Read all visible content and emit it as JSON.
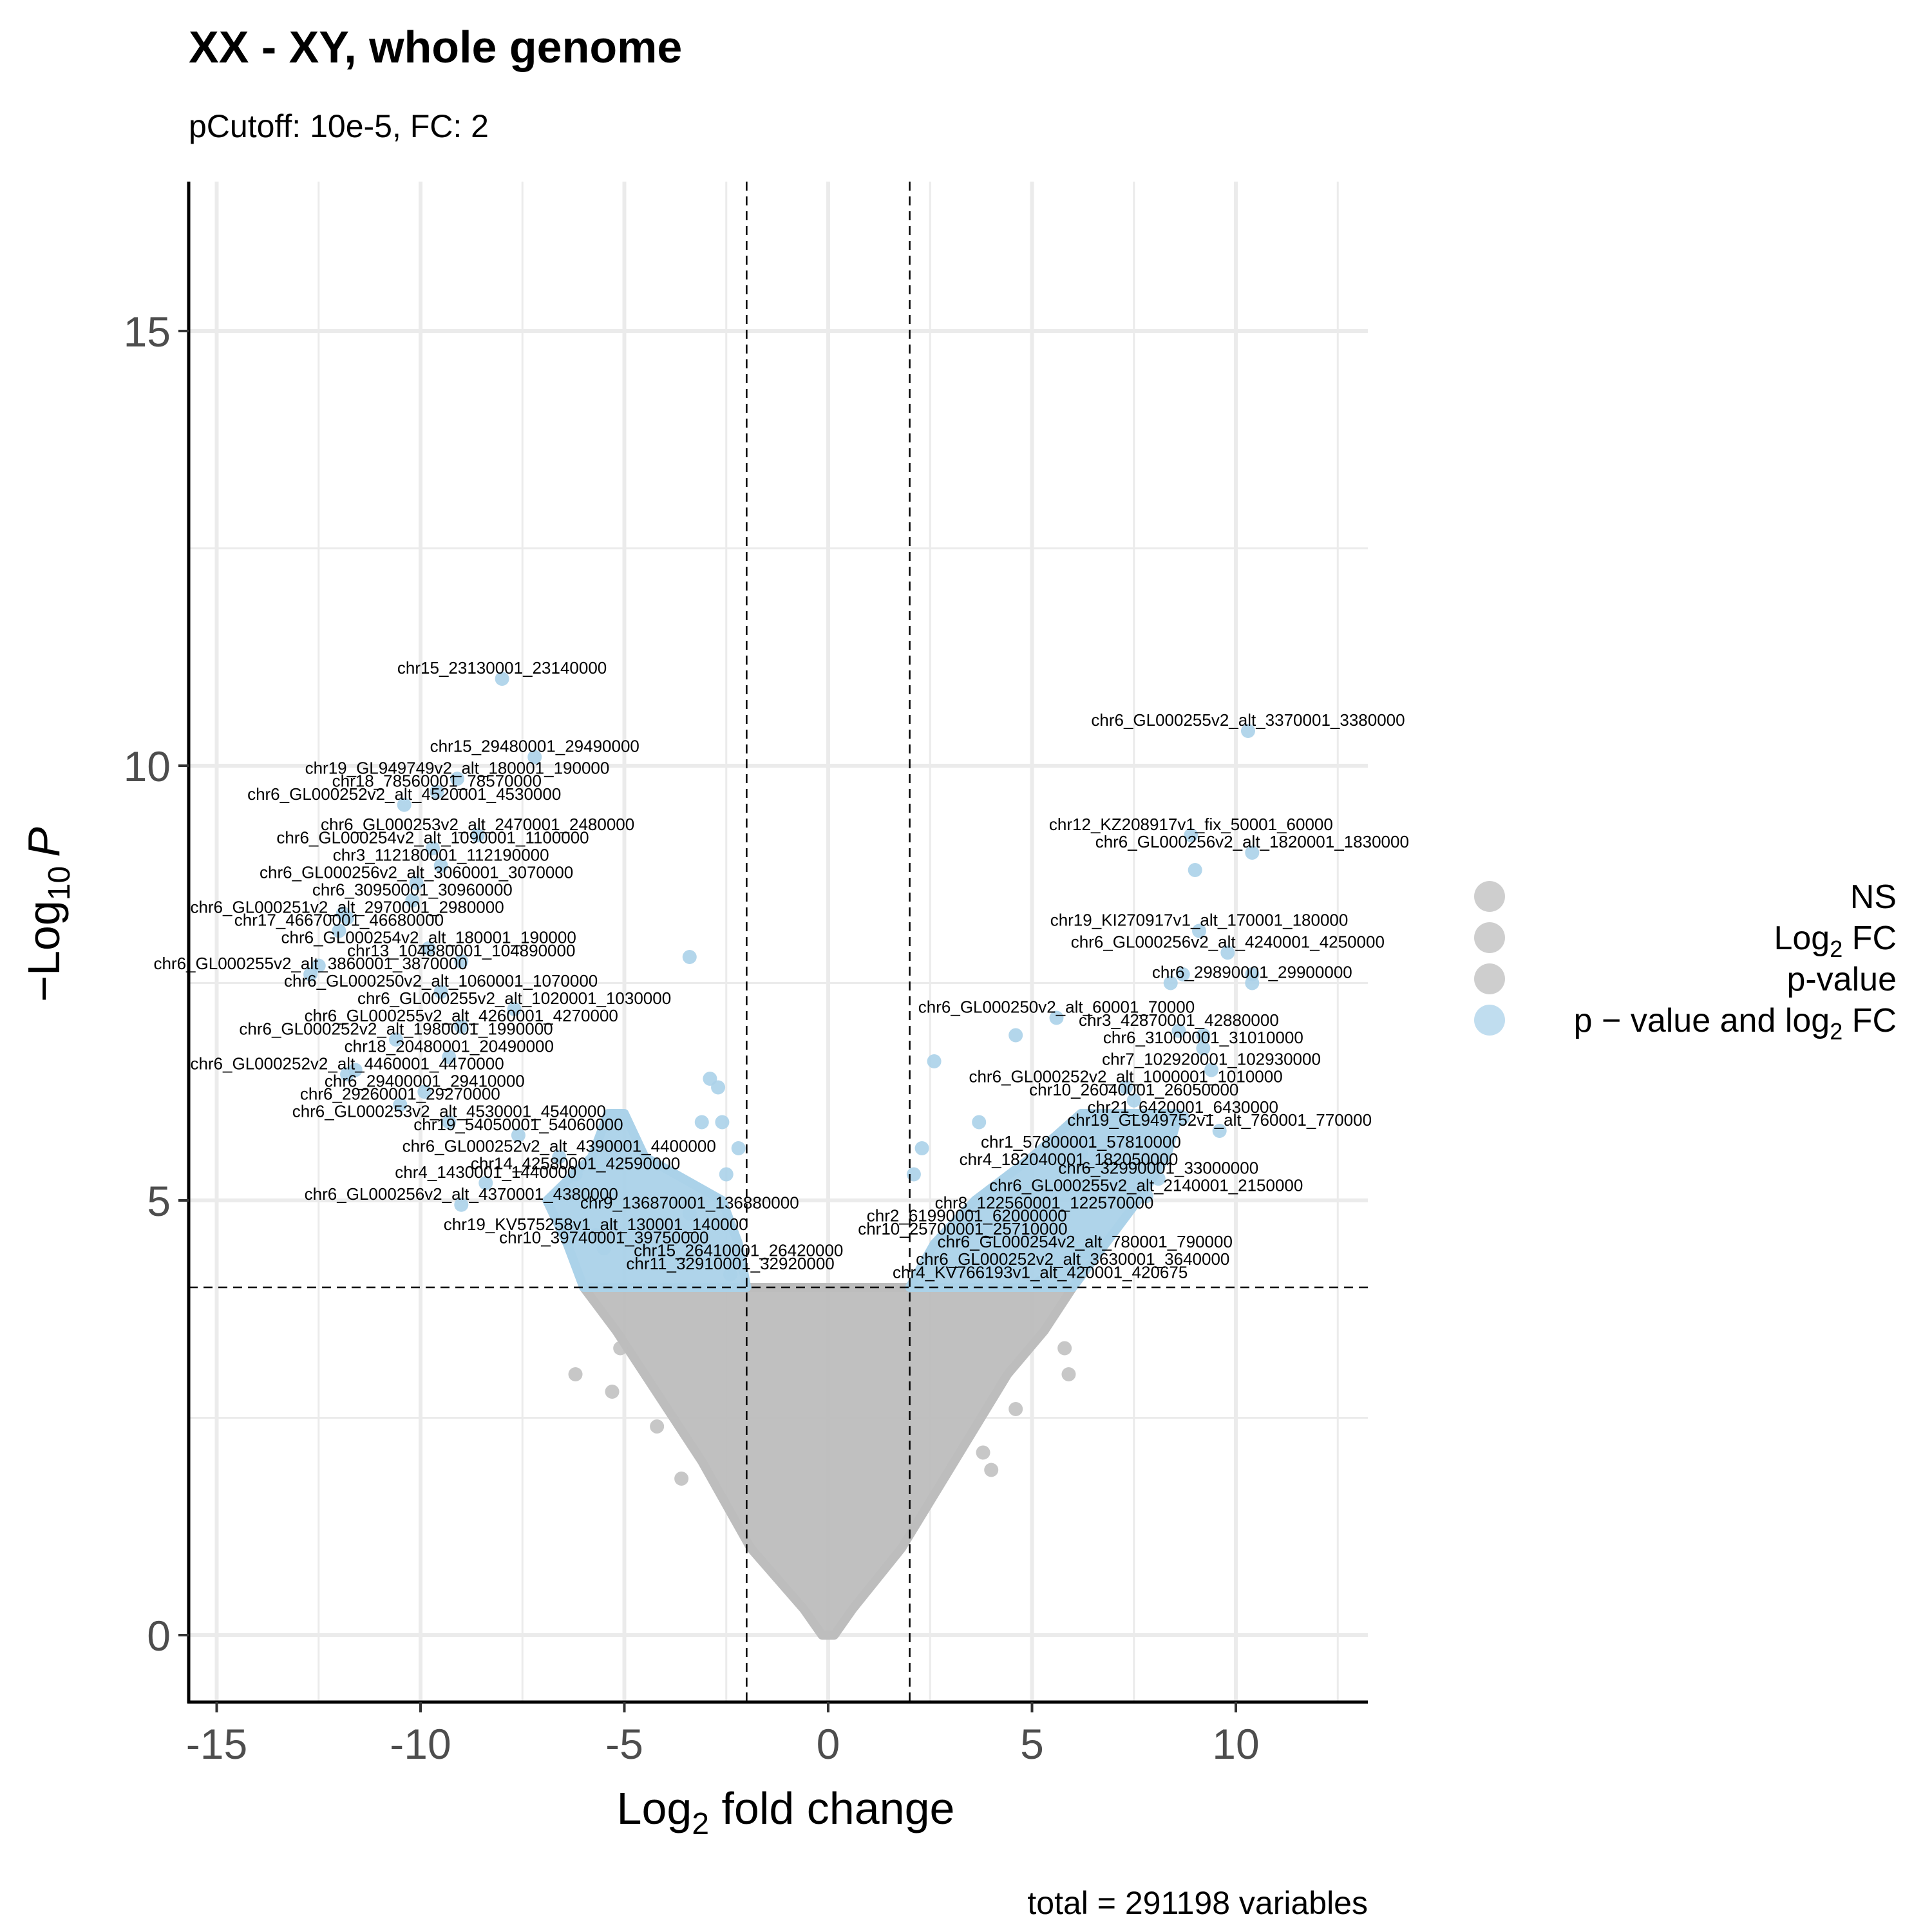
{
  "chart_data": {
    "type": "scatter",
    "title": "XX - XY, whole genome",
    "subtitle": "pCutoff: 10e-5, FC: 2",
    "xlabel_main": "Log",
    "xlabel_sub": "2",
    "xlabel_tail": " fold change",
    "ylabel_prefix": "−Log",
    "ylabel_sub": "10",
    "ylabel_tail": "P",
    "caption": "total = 291198 variables",
    "xlim": [
      -15.6,
      13.2
    ],
    "ylim": [
      -0.8,
      16.8
    ],
    "x_ticks": [
      -15,
      -10,
      -5,
      0,
      5,
      10
    ],
    "x_tick_labels": [
      "-15",
      "-10",
      "-5",
      "0",
      "5",
      "10"
    ],
    "y_ticks": [
      0,
      5,
      10,
      15
    ],
    "y_tick_labels": [
      "0",
      "5",
      "10",
      "15"
    ],
    "grid": true,
    "cutoffs": {
      "log2fc": [
        -2,
        2
      ],
      "neg_log10_p": 4
    },
    "colors": {
      "ns": "#bdbdbd",
      "significant": "#abd2e9"
    },
    "legend": {
      "position": "right",
      "entries": [
        {
          "key": "ns",
          "label": "NS",
          "color": "#bdbdbd"
        },
        {
          "key": "fc",
          "label": "Log",
          "sub": "2",
          "tail": " FC",
          "color": "#bdbdbd"
        },
        {
          "key": "p",
          "label": "p-value",
          "color": "#bdbdbd"
        },
        {
          "key": "both",
          "label": "p − value and log",
          "sub": "2",
          "tail": " FC",
          "color": "#abd2e9"
        }
      ]
    },
    "labeled_points": [
      {
        "label": "chr15_23130001_23140000",
        "x": -8.0,
        "y": 11.0
      },
      {
        "label": "chr15_29480001_29490000",
        "x": -7.2,
        "y": 10.1
      },
      {
        "label": "chr19_GL949749v2_alt_180001_190000",
        "x": -9.1,
        "y": 9.85
      },
      {
        "label": "chr18_78560001_78570000",
        "x": -9.6,
        "y": 9.7
      },
      {
        "label": "chr6_GL000252v2_alt_4520001_4530000",
        "x": -10.4,
        "y": 9.55
      },
      {
        "label": "chr6_GL000253v2_alt_2470001_2480000",
        "x": -8.6,
        "y": 9.2
      },
      {
        "label": "chr6_GL000254v2_alt_1090001_1100000",
        "x": -9.7,
        "y": 9.05
      },
      {
        "label": "chr3_112180001_112190000",
        "x": -9.5,
        "y": 8.85
      },
      {
        "label": "chr6_GL000256v2_alt_3060001_3070000",
        "x": -10.1,
        "y": 8.65
      },
      {
        "label": "chr6_30950001_30960000",
        "x": -10.2,
        "y": 8.45
      },
      {
        "label": "chr6_GL000251v2_alt_2970001_2980000",
        "x": -11.8,
        "y": 8.25
      },
      {
        "label": "chr17_46670001_46680000",
        "x": -12.0,
        "y": 8.1
      },
      {
        "label": "chr6_GL000254v2_alt_180001_190000",
        "x": -9.8,
        "y": 7.9
      },
      {
        "label": "chr13_104880001_104890000",
        "x": -9.0,
        "y": 7.75
      },
      {
        "label": "chr6_GL000255v2_alt_3860001_3870000",
        "x": -12.7,
        "y": 7.6
      },
      {
        "label": "chr6_GL000250v2_alt_1060001_1070000",
        "x": -9.5,
        "y": 7.4
      },
      {
        "label": "chr6_GL000255v2_alt_1020001_1030000",
        "x": -7.7,
        "y": 7.2
      },
      {
        "label": "chr6_GL000255v2_alt_4260001_4270000",
        "x": -9.0,
        "y": 7.0
      },
      {
        "label": "chr6_GL000252v2_alt_1980001_1990000",
        "x": -10.6,
        "y": 6.85
      },
      {
        "label": "chr18_20480001_20490000",
        "x": -9.3,
        "y": 6.65
      },
      {
        "label": "chr6_GL000252v2_alt_4460001_4470000",
        "x": -11.8,
        "y": 6.45
      },
      {
        "label": "chr6_29400001_29410000",
        "x": -9.9,
        "y": 6.25
      },
      {
        "label": "chr6_29260001_29270000",
        "x": -10.5,
        "y": 6.1
      },
      {
        "label": "chr6_GL000253v2_alt_4530001_4540000",
        "x": -9.3,
        "y": 5.9
      },
      {
        "label": "chr19_54050001_54060000",
        "x": -7.6,
        "y": 5.75
      },
      {
        "label": "chr6_GL000252v2_alt_4390001_4400000",
        "x": -6.6,
        "y": 5.5
      },
      {
        "label": "chr14_42580001_42590000",
        "x": -6.2,
        "y": 5.3
      },
      {
        "label": "chr4_1430001_1440000",
        "x": -8.4,
        "y": 5.2
      },
      {
        "label": "chr6_GL000256v2_alt_4370001_4380000",
        "x": -9.0,
        "y": 4.95
      },
      {
        "label": "chr9_136870001_136880000",
        "x": -3.4,
        "y": 4.85
      },
      {
        "label": "chr19_KV575258v1_alt_130001_140000",
        "x": -5.7,
        "y": 4.6
      },
      {
        "label": "chr10_39740001_39750000",
        "x": -5.5,
        "y": 4.45
      },
      {
        "label": "chr15_26410001_26420000",
        "x": -2.2,
        "y": 4.3
      },
      {
        "label": "chr11_32910001_32920000",
        "x": -2.4,
        "y": 4.15
      },
      {
        "label": "chr6_GL000255v2_alt_3370001_3380000",
        "x": 10.3,
        "y": 10.4
      },
      {
        "label": "chr12_KZ208917v1_fix_50001_60000",
        "x": 8.9,
        "y": 9.2
      },
      {
        "label": "chr6_GL000256v2_alt_1820001_1830000",
        "x": 10.4,
        "y": 9.0
      },
      {
        "label": "chr19_KI270917v1_alt_170001_180000",
        "x": 9.1,
        "y": 8.1
      },
      {
        "label": "chr6_GL000256v2_alt_4240001_4250000",
        "x": 9.8,
        "y": 7.85
      },
      {
        "label": "chr6_29890001_29900000",
        "x": 10.4,
        "y": 7.5
      },
      {
        "label": "chr6_GL000250v2_alt_60001_70000",
        "x": 5.6,
        "y": 7.1
      },
      {
        "label": "chr3_42870001_42880000",
        "x": 8.6,
        "y": 6.95
      },
      {
        "label": "chr6_31000001_31010000",
        "x": 9.2,
        "y": 6.75
      },
      {
        "label": "chr7_102920001_102930000",
        "x": 9.4,
        "y": 6.5
      },
      {
        "label": "chr6_GL000252v2_alt_1000001_1010000",
        "x": 7.3,
        "y": 6.3
      },
      {
        "label": "chr10_26040001_26050000",
        "x": 7.5,
        "y": 6.15
      },
      {
        "label": "chr21_6420001_6430000",
        "x": 8.7,
        "y": 5.95
      },
      {
        "label": "chr19_GL949752v1_alt_760001_770000",
        "x": 9.6,
        "y": 5.8
      },
      {
        "label": "chr1_57800001_57810000",
        "x": 6.2,
        "y": 5.55
      },
      {
        "label": "chr4_182040001_182050000",
        "x": 5.9,
        "y": 5.35
      },
      {
        "label": "chr6_32990001_33000000",
        "x": 8.1,
        "y": 5.25
      },
      {
        "label": "chr6_GL000255v2_alt_2140001_2150000",
        "x": 7.8,
        "y": 5.05
      },
      {
        "label": "chr8_122560001_122570000",
        "x": 5.3,
        "y": 4.85
      },
      {
        "label": "chr2_61990001_62000000",
        "x": 3.4,
        "y": 4.7
      },
      {
        "label": "chr10_25700001_25710000",
        "x": 3.3,
        "y": 4.55
      },
      {
        "label": "chr6_GL000254v2_alt_780001_790000",
        "x": 6.3,
        "y": 4.4
      },
      {
        "label": "chr6_GL000252v2_alt_3630001_3640000",
        "x": 6.0,
        "y": 4.2
      },
      {
        "label": "chr4_KV766193v1_alt_420001_420675",
        "x": 5.2,
        "y": 4.05
      }
    ],
    "extra_significant_points": [
      {
        "x": -3.4,
        "y": 7.8
      },
      {
        "x": -2.9,
        "y": 6.4
      },
      {
        "x": -2.7,
        "y": 6.3
      },
      {
        "x": -3.1,
        "y": 5.9
      },
      {
        "x": -2.6,
        "y": 5.9
      },
      {
        "x": -2.2,
        "y": 5.6
      },
      {
        "x": -2.5,
        "y": 5.3
      },
      {
        "x": 2.3,
        "y": 5.6
      },
      {
        "x": 2.6,
        "y": 6.6
      },
      {
        "x": 2.1,
        "y": 5.3
      },
      {
        "x": 9.0,
        "y": 8.8
      },
      {
        "x": 8.4,
        "y": 7.5
      },
      {
        "x": 9.2,
        "y": 6.9
      },
      {
        "x": 10.4,
        "y": 7.6
      },
      {
        "x": 8.7,
        "y": 7.6
      },
      {
        "x": 4.6,
        "y": 6.9
      },
      {
        "x": 3.7,
        "y": 5.9
      },
      {
        "x": -11.6,
        "y": 6.5
      },
      {
        "x": -11.9,
        "y": 8.3
      },
      {
        "x": -12.5,
        "y": 7.7
      }
    ],
    "ns_outliers": [
      {
        "x": -6.2,
        "y": 3.0
      },
      {
        "x": -5.1,
        "y": 3.3
      },
      {
        "x": -5.3,
        "y": 2.8
      },
      {
        "x": 5.8,
        "y": 3.3
      },
      {
        "x": 5.9,
        "y": 3.0
      },
      {
        "x": 3.8,
        "y": 2.1
      },
      {
        "x": 4.0,
        "y": 1.9
      },
      {
        "x": -3.6,
        "y": 1.8
      },
      {
        "x": -4.2,
        "y": 2.4
      },
      {
        "x": 4.6,
        "y": 2.6
      }
    ],
    "ns_envelope": [
      {
        "y": 0.0,
        "left": -0.15,
        "right": 0.15
      },
      {
        "y": 0.3,
        "left": -0.6,
        "right": 0.6
      },
      {
        "y": 1.0,
        "left": -1.9,
        "right": 1.8
      },
      {
        "y": 2.0,
        "left": -3.1,
        "right": 3.1
      },
      {
        "y": 3.0,
        "left": -4.5,
        "right": 4.4
      },
      {
        "y": 3.5,
        "left": -5.2,
        "right": 5.3
      },
      {
        "y": 4.0,
        "left": -6.0,
        "right": 6.0
      }
    ],
    "ns_inner": [
      {
        "y": 0.0,
        "left": 0.0,
        "right": 0.0
      },
      {
        "y": 1.0,
        "left": -0.35,
        "right": 0.35
      },
      {
        "y": 2.0,
        "left": -0.8,
        "right": 0.8
      },
      {
        "y": 3.0,
        "left": -1.4,
        "right": 1.4
      },
      {
        "y": 4.0,
        "left": -2.0,
        "right": 2.0
      }
    ],
    "sig_band_left": [
      {
        "y": 4.0,
        "left": -6.0,
        "right": -2.0
      },
      {
        "y": 4.5,
        "left": -6.4,
        "right": -2.2
      },
      {
        "y": 5.0,
        "left": -6.9,
        "right": -2.6
      },
      {
        "y": 5.5,
        "left": -5.8,
        "right": -4.5
      },
      {
        "y": 6.0,
        "left": -5.4,
        "right": -5.0
      }
    ],
    "sig_band_right": [
      {
        "y": 4.0,
        "left": 2.0,
        "right": 6.0
      },
      {
        "y": 4.5,
        "left": 2.6,
        "right": 6.8
      },
      {
        "y": 5.0,
        "left": 3.6,
        "right": 7.6
      },
      {
        "y": 5.5,
        "left": 5.0,
        "right": 8.3
      },
      {
        "y": 6.0,
        "left": 6.2,
        "right": 8.6
      }
    ]
  }
}
